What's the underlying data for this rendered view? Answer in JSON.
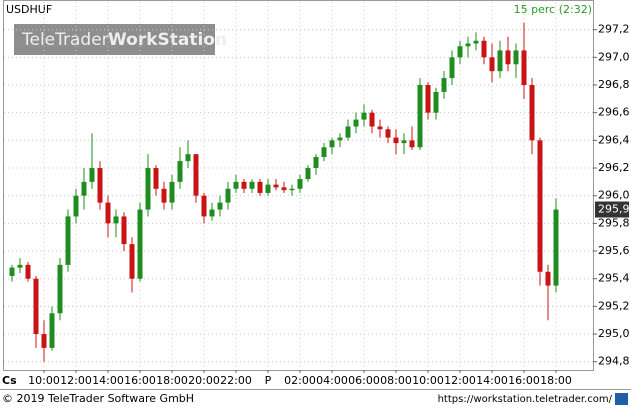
{
  "chart_data": {
    "type": "candlestick",
    "symbol": "USDHUF",
    "interval": "15 perc (2:32)",
    "watermark": {
      "light": "TeleTrader",
      "bold": "WorkStation"
    },
    "corner_label": "Cs",
    "footer": {
      "left": "© 2019 TeleTrader Software GmbH",
      "right": "https://workstation.teletrader.com/"
    },
    "up_color": "#1e8c1e",
    "down_color": "#c81414",
    "grid": true,
    "ylim": [
      294.74,
      297.4
    ],
    "yticks": [
      {
        "value": 294.8,
        "label": "294,8"
      },
      {
        "value": 295.0,
        "label": "295,0"
      },
      {
        "value": 295.2,
        "label": "295,2"
      },
      {
        "value": 295.4,
        "label": "295,4"
      },
      {
        "value": 295.6,
        "label": "295,6"
      },
      {
        "value": 295.8,
        "label": "295,8"
      },
      {
        "value": 296.0,
        "label": "296,0"
      },
      {
        "value": 296.2,
        "label": "296,2"
      },
      {
        "value": 296.4,
        "label": "296,4"
      },
      {
        "value": 296.6,
        "label": "296,6"
      },
      {
        "value": 296.8,
        "label": "296,8"
      },
      {
        "value": 297.0,
        "label": "297,0"
      },
      {
        "value": 297.2,
        "label": "297,2"
      }
    ],
    "last": {
      "value": 295.9,
      "label": "295,9"
    },
    "categories": [
      null,
      null,
      null,
      null,
      "10:00",
      null,
      null,
      null,
      "12:00",
      null,
      null,
      null,
      "14:00",
      null,
      null,
      null,
      "16:00",
      null,
      null,
      null,
      "18:00",
      null,
      null,
      null,
      "20:00",
      null,
      null,
      null,
      "22:00",
      null,
      null,
      null,
      "P",
      null,
      null,
      null,
      "02:00",
      null,
      null,
      null,
      "04:00",
      null,
      null,
      null,
      "06:00",
      null,
      null,
      null,
      "08:00",
      null,
      null,
      null,
      "10:00",
      null,
      null,
      null,
      "12:00",
      null,
      null,
      null,
      "14:00",
      null,
      null,
      null,
      "16:00",
      null,
      null,
      null,
      "18:00"
    ],
    "ohlc": [
      [
        295.42,
        295.5,
        295.38,
        295.48
      ],
      [
        295.48,
        295.55,
        295.44,
        295.5
      ],
      [
        295.5,
        295.52,
        295.38,
        295.4
      ],
      [
        295.4,
        295.42,
        294.9,
        295.0
      ],
      [
        295.0,
        295.1,
        294.8,
        294.9
      ],
      [
        294.9,
        295.2,
        294.88,
        295.15
      ],
      [
        295.15,
        295.55,
        295.1,
        295.5
      ],
      [
        295.5,
        295.9,
        295.45,
        295.85
      ],
      [
        295.85,
        296.05,
        295.8,
        296.0
      ],
      [
        296.0,
        296.2,
        295.9,
        296.1
      ],
      [
        296.1,
        296.45,
        296.05,
        296.2
      ],
      [
        296.2,
        296.25,
        295.9,
        295.95
      ],
      [
        295.95,
        296.0,
        295.7,
        295.8
      ],
      [
        295.8,
        295.9,
        295.7,
        295.85
      ],
      [
        295.85,
        295.88,
        295.6,
        295.65
      ],
      [
        295.65,
        295.7,
        295.3,
        295.4
      ],
      [
        295.4,
        295.95,
        295.38,
        295.9
      ],
      [
        295.9,
        296.3,
        295.85,
        296.2
      ],
      [
        296.2,
        296.22,
        296.0,
        296.05
      ],
      [
        296.05,
        296.1,
        295.9,
        295.95
      ],
      [
        295.95,
        296.15,
        295.9,
        296.1
      ],
      [
        296.1,
        296.35,
        296.05,
        296.25
      ],
      [
        296.25,
        296.4,
        296.2,
        296.3
      ],
      [
        296.3,
        296.3,
        295.95,
        296.0
      ],
      [
        296.0,
        296.02,
        295.8,
        295.85
      ],
      [
        295.85,
        295.95,
        295.82,
        295.9
      ],
      [
        295.9,
        296.0,
        295.85,
        295.95
      ],
      [
        295.95,
        296.1,
        295.9,
        296.05
      ],
      [
        296.05,
        296.15,
        296.02,
        296.1
      ],
      [
        296.1,
        296.12,
        296.02,
        296.05
      ],
      [
        296.05,
        296.12,
        296.02,
        296.1
      ],
      [
        296.1,
        296.12,
        296.0,
        296.02
      ],
      [
        296.02,
        296.12,
        296.0,
        296.08
      ],
      [
        296.08,
        296.12,
        296.04,
        296.06
      ],
      [
        296.06,
        296.1,
        296.02,
        296.04
      ],
      [
        296.04,
        296.08,
        296.0,
        296.05
      ],
      [
        296.05,
        296.15,
        296.02,
        296.12
      ],
      [
        296.12,
        296.22,
        296.1,
        296.2
      ],
      [
        296.2,
        296.3,
        296.15,
        296.28
      ],
      [
        296.28,
        296.38,
        296.25,
        296.35
      ],
      [
        296.35,
        296.42,
        296.3,
        296.4
      ],
      [
        296.4,
        296.45,
        296.35,
        296.42
      ],
      [
        296.42,
        296.55,
        296.4,
        296.5
      ],
      [
        296.5,
        296.6,
        296.45,
        296.55
      ],
      [
        296.55,
        296.66,
        296.5,
        296.6
      ],
      [
        296.6,
        296.62,
        296.45,
        296.5
      ],
      [
        296.5,
        296.55,
        296.42,
        296.48
      ],
      [
        296.48,
        296.5,
        296.38,
        296.42
      ],
      [
        296.42,
        296.48,
        296.3,
        296.38
      ],
      [
        296.38,
        296.45,
        296.3,
        296.4
      ],
      [
        296.4,
        296.5,
        296.33,
        296.35
      ],
      [
        296.35,
        296.85,
        296.33,
        296.8
      ],
      [
        296.8,
        296.82,
        296.55,
        296.6
      ],
      [
        296.6,
        296.78,
        296.55,
        296.75
      ],
      [
        296.75,
        296.9,
        296.7,
        296.85
      ],
      [
        296.85,
        297.05,
        296.8,
        297.0
      ],
      [
        297.0,
        297.12,
        296.95,
        297.08
      ],
      [
        297.08,
        297.15,
        297.0,
        297.1
      ],
      [
        297.1,
        297.18,
        297.05,
        297.12
      ],
      [
        297.12,
        297.15,
        296.95,
        297.0
      ],
      [
        297.0,
        297.1,
        296.82,
        296.9
      ],
      [
        296.9,
        297.12,
        296.85,
        297.05
      ],
      [
        297.05,
        297.15,
        296.9,
        296.95
      ],
      [
        296.95,
        297.1,
        296.85,
        297.05
      ],
      [
        297.05,
        297.25,
        296.7,
        296.8
      ],
      [
        296.8,
        296.85,
        296.3,
        296.4
      ],
      [
        296.4,
        296.42,
        295.35,
        295.45
      ],
      [
        295.45,
        295.5,
        295.1,
        295.35
      ],
      [
        295.35,
        295.98,
        295.3,
        295.9
      ]
    ]
  }
}
